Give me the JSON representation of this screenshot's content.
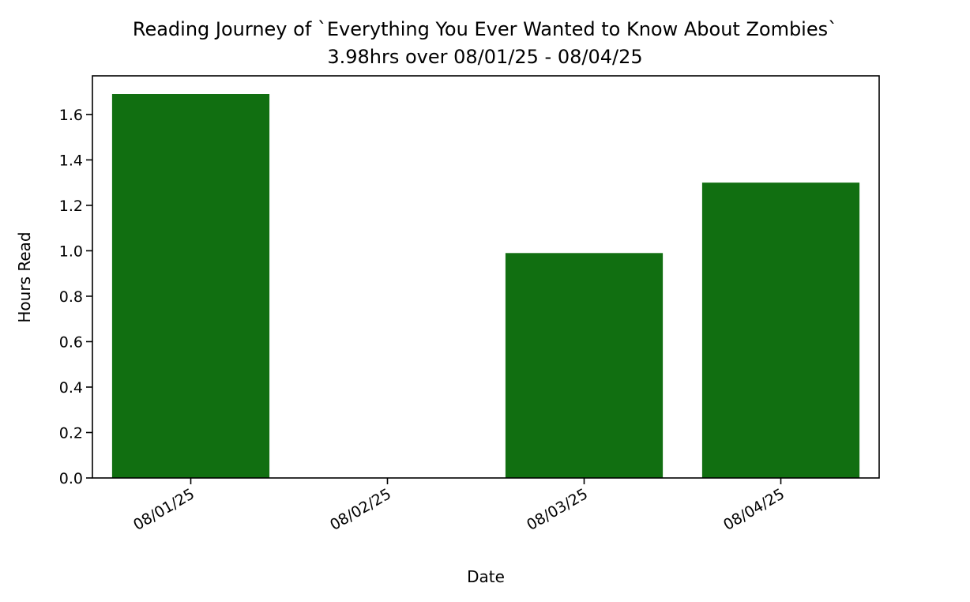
{
  "chart_data": {
    "type": "bar",
    "title": "Reading Journey of `Everything You Ever Wanted to Know About Zombies`",
    "subtitle": "3.98hrs over 08/01/25 - 08/04/25",
    "xlabel": "Date",
    "ylabel": "Hours Read",
    "categories": [
      "08/01/25",
      "08/02/25",
      "08/03/25",
      "08/04/25"
    ],
    "values": [
      1.69,
      0.0,
      0.99,
      1.3
    ],
    "ylim": [
      0,
      1.77
    ],
    "yticks": [
      "0.0",
      "0.2",
      "0.4",
      "0.6",
      "0.8",
      "1.0",
      "1.2",
      "1.4",
      "1.6"
    ],
    "bar_color": "#116f11",
    "grid": false,
    "legend": "none"
  }
}
